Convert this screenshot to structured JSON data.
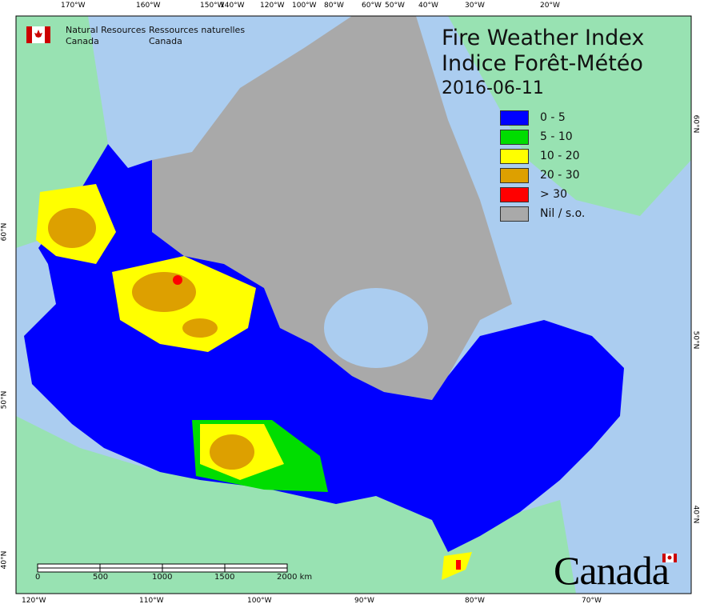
{
  "header": {
    "org_en_line1": "Natural Resources",
    "org_en_line2": "Canada",
    "org_fr_line1": "Ressources naturelles",
    "org_fr_line2": "Canada"
  },
  "title": {
    "line1": "Fire Weather Index",
    "line2": "Indice Forêt-Météo",
    "date": "2016-06-11"
  },
  "legend": [
    {
      "label": "0 - 5",
      "color": "#0000ff"
    },
    {
      "label": "5 - 10",
      "color": "#00dd00"
    },
    {
      "label": "10 - 20",
      "color": "#ffff00"
    },
    {
      "label": "20 - 30",
      "color": "#dda000"
    },
    {
      "label": "> 30",
      "color": "#ff0000"
    },
    {
      "label": "Nil / s.o.",
      "color": "#a9a9a9"
    }
  ],
  "axes": {
    "top_longitudes": [
      "170°W",
      "160°W",
      "150°W",
      "140°W",
      "120°W",
      "100°W",
      "80°W",
      "60°W",
      "50°W",
      "40°W",
      "30°W",
      "20°W"
    ],
    "bottom_longitudes": [
      "120°W",
      "110°W",
      "100°W",
      "90°W",
      "80°W",
      "70°W"
    ],
    "left_latitudes": [
      "60°N",
      "50°N",
      "40°N"
    ],
    "right_latitudes": [
      "60°N",
      "50°N",
      "40°N"
    ]
  },
  "scale_bar": {
    "labels": [
      "0",
      "500",
      "1000",
      "1500",
      "2000 km"
    ]
  },
  "wordmark": "Canada",
  "colors": {
    "ocean": "#abcdf0",
    "foreign_land": "#98e2b2",
    "nodata": "#a9a9a9"
  }
}
